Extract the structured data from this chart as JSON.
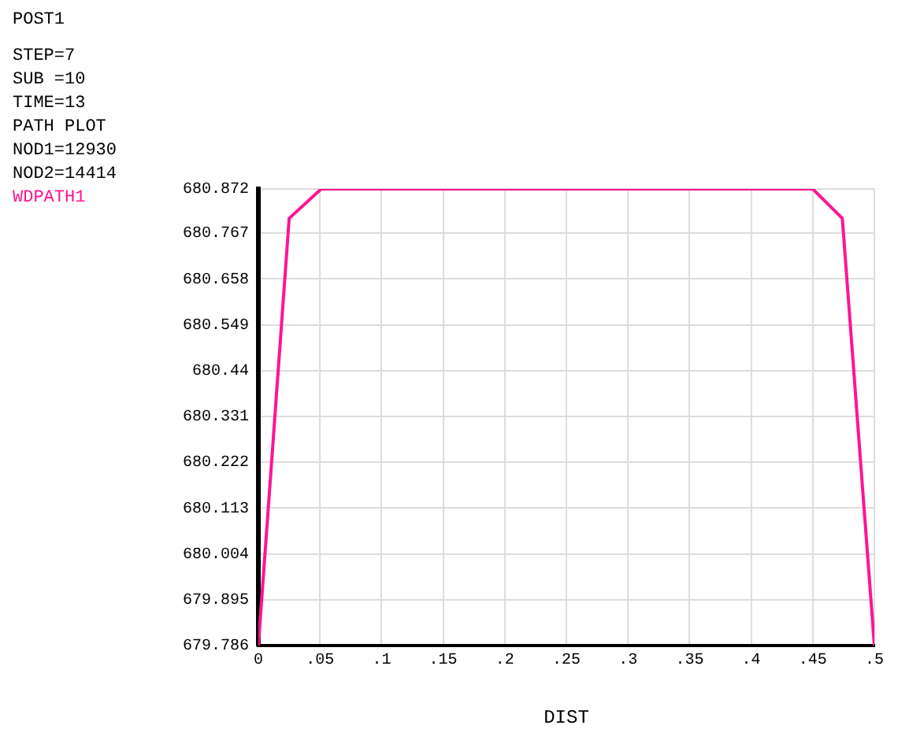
{
  "chart_data": {
    "type": "line",
    "title": "POST1",
    "annotations": [
      "STEP=7",
      "SUB =10",
      "TIME=13",
      "PATH PLOT",
      "NOD1=12930",
      "NOD2=14414"
    ],
    "xlabel": "DIST",
    "legend": "left",
    "grid": true,
    "marker": "none",
    "line_style": "solid",
    "series": [
      {
        "name": "WDPATH1",
        "color": "#ff1493",
        "x": [
          0,
          0.025,
          0.051,
          0.45,
          0.474,
          0.5
        ],
        "values": [
          679.786,
          680.802,
          680.872,
          680.872,
          680.802,
          679.786
        ]
      }
    ],
    "xlim": [
      0,
      0.5
    ],
    "xticks": [
      0,
      {
        "value": 0.05,
        "label": ".05"
      },
      {
        "value": 0.1,
        "label": ".1"
      },
      {
        "value": 0.15,
        "label": ".15"
      },
      {
        "value": 0.2,
        "label": ".2"
      },
      {
        "value": 0.25,
        "label": ".25"
      },
      {
        "value": 0.3,
        "label": ".3"
      },
      {
        "value": 0.35,
        "label": ".35"
      },
      {
        "value": 0.4,
        "label": ".4"
      },
      {
        "value": 0.45,
        "label": ".45"
      },
      {
        "value": 0.5,
        "label": ".5"
      }
    ],
    "ylim": [
      679.786,
      680.872
    ],
    "yticks": [
      679.786,
      679.895,
      680.004,
      680.113,
      680.222,
      680.331,
      680.44,
      680.549,
      680.658,
      680.767,
      680.872
    ]
  }
}
